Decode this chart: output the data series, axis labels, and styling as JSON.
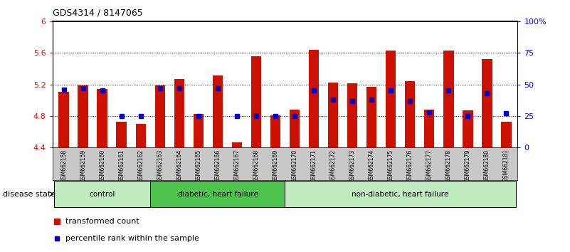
{
  "title": "GDS4314 / 8147065",
  "samples": [
    "GSM662158",
    "GSM662159",
    "GSM662160",
    "GSM662161",
    "GSM662162",
    "GSM662163",
    "GSM662164",
    "GSM662165",
    "GSM662166",
    "GSM662167",
    "GSM662168",
    "GSM662169",
    "GSM662170",
    "GSM662171",
    "GSM662172",
    "GSM662173",
    "GSM662174",
    "GSM662175",
    "GSM662176",
    "GSM662177",
    "GSM662178",
    "GSM662179",
    "GSM662180",
    "GSM662181"
  ],
  "transformed_count": [
    5.11,
    5.19,
    5.14,
    4.73,
    4.7,
    5.19,
    5.27,
    4.83,
    5.31,
    4.46,
    5.56,
    4.81,
    4.88,
    5.64,
    5.22,
    5.21,
    5.17,
    5.63,
    5.24,
    4.88,
    5.63,
    4.87,
    5.52,
    4.73
  ],
  "percentile_rank": [
    46,
    47,
    45,
    25,
    25,
    47,
    47,
    25,
    47,
    25,
    25,
    25,
    25,
    45,
    38,
    37,
    38,
    45,
    37,
    28,
    45,
    25,
    43,
    27
  ],
  "groups": [
    {
      "label": "control",
      "start": 0,
      "end": 5
    },
    {
      "label": "diabetic, heart failure",
      "start": 5,
      "end": 12
    },
    {
      "label": "non-diabetic, heart failure",
      "start": 12,
      "end": 24
    }
  ],
  "group_colors": [
    "#c0ecc0",
    "#4ec44e",
    "#c0ecc0"
  ],
  "ylim_left": [
    4.4,
    6.0
  ],
  "ylim_right": [
    0,
    100
  ],
  "yticks_left": [
    4.4,
    4.8,
    5.2,
    5.6,
    6.0
  ],
  "ytick_labels_left": [
    "4.4",
    "4.8",
    "5.2",
    "5.6",
    "6"
  ],
  "yticks_right": [
    0,
    25,
    50,
    75,
    100
  ],
  "ytick_labels_right": [
    "0",
    "25",
    "50",
    "75",
    "100%"
  ],
  "bar_color": "#cc1100",
  "dot_color": "#0000cc",
  "bar_bottom": 4.4,
  "legend_labels": [
    "transformed count",
    "percentile rank within the sample"
  ],
  "legend_colors": [
    "#cc1100",
    "#0000cc"
  ],
  "disease_state_label": "disease state",
  "xticklabel_bg": "#c8c8c8"
}
